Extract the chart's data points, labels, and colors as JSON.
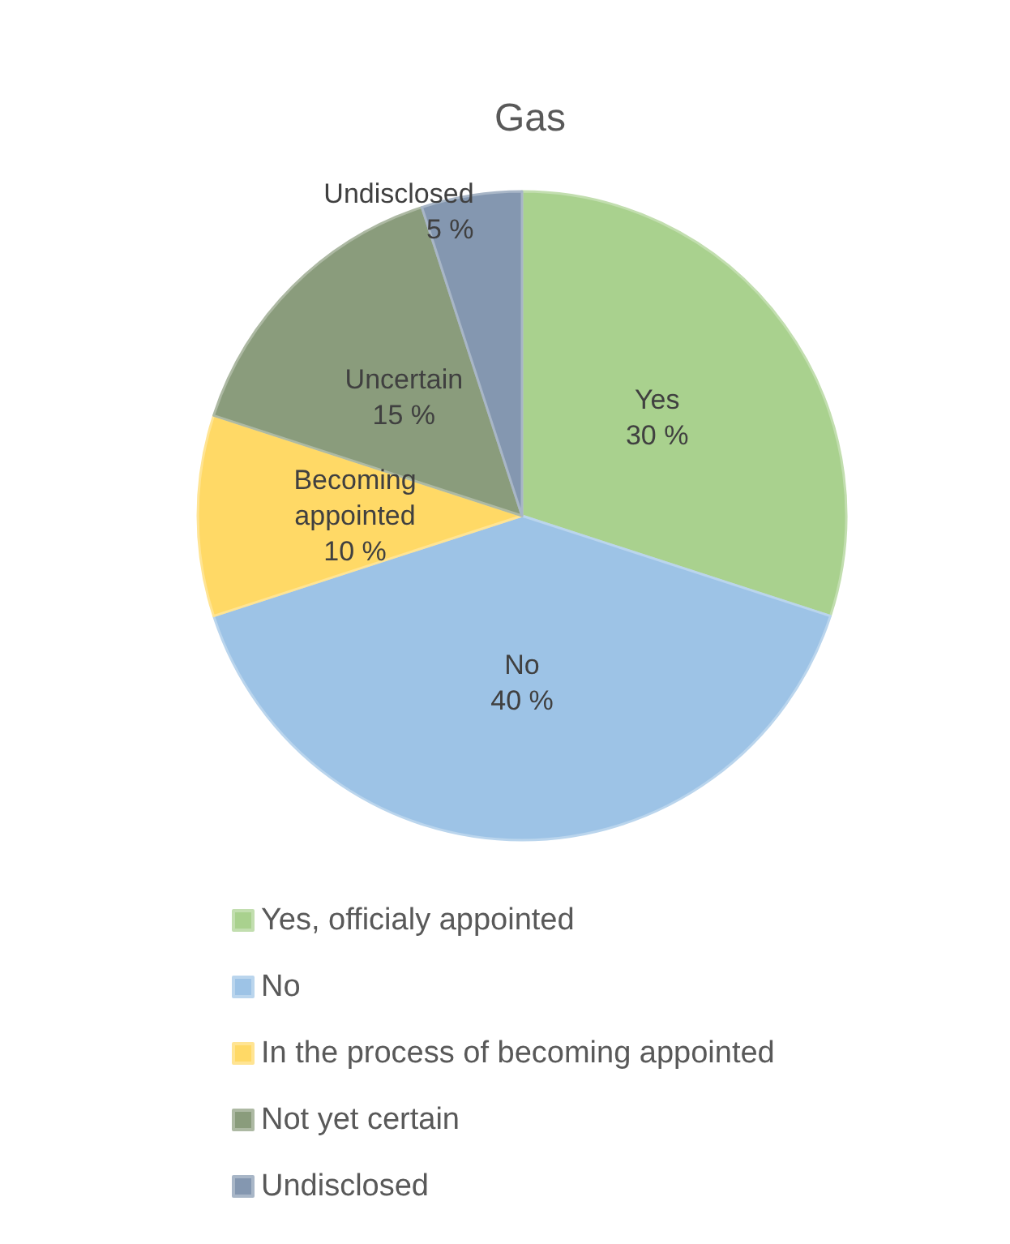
{
  "chart_data": {
    "type": "pie",
    "title": "Gas",
    "categories": [
      "Yes, officialy appointed",
      "No",
      "In the process of becoming appointed",
      "Not yet certain",
      "Undisclosed"
    ],
    "values": [
      30,
      40,
      10,
      15,
      5
    ],
    "colors": [
      "#a9d18e",
      "#9dc3e6",
      "#ffd966",
      "#8a9c7c",
      "#8497b0"
    ],
    "value_labels": [
      "Yes\n30 %",
      "No\n40 %",
      "Becoming\nappointed\n10 %",
      "Uncertain\n15 %",
      "Undisclosed\n5 %"
    ],
    "legend": "bottom"
  }
}
